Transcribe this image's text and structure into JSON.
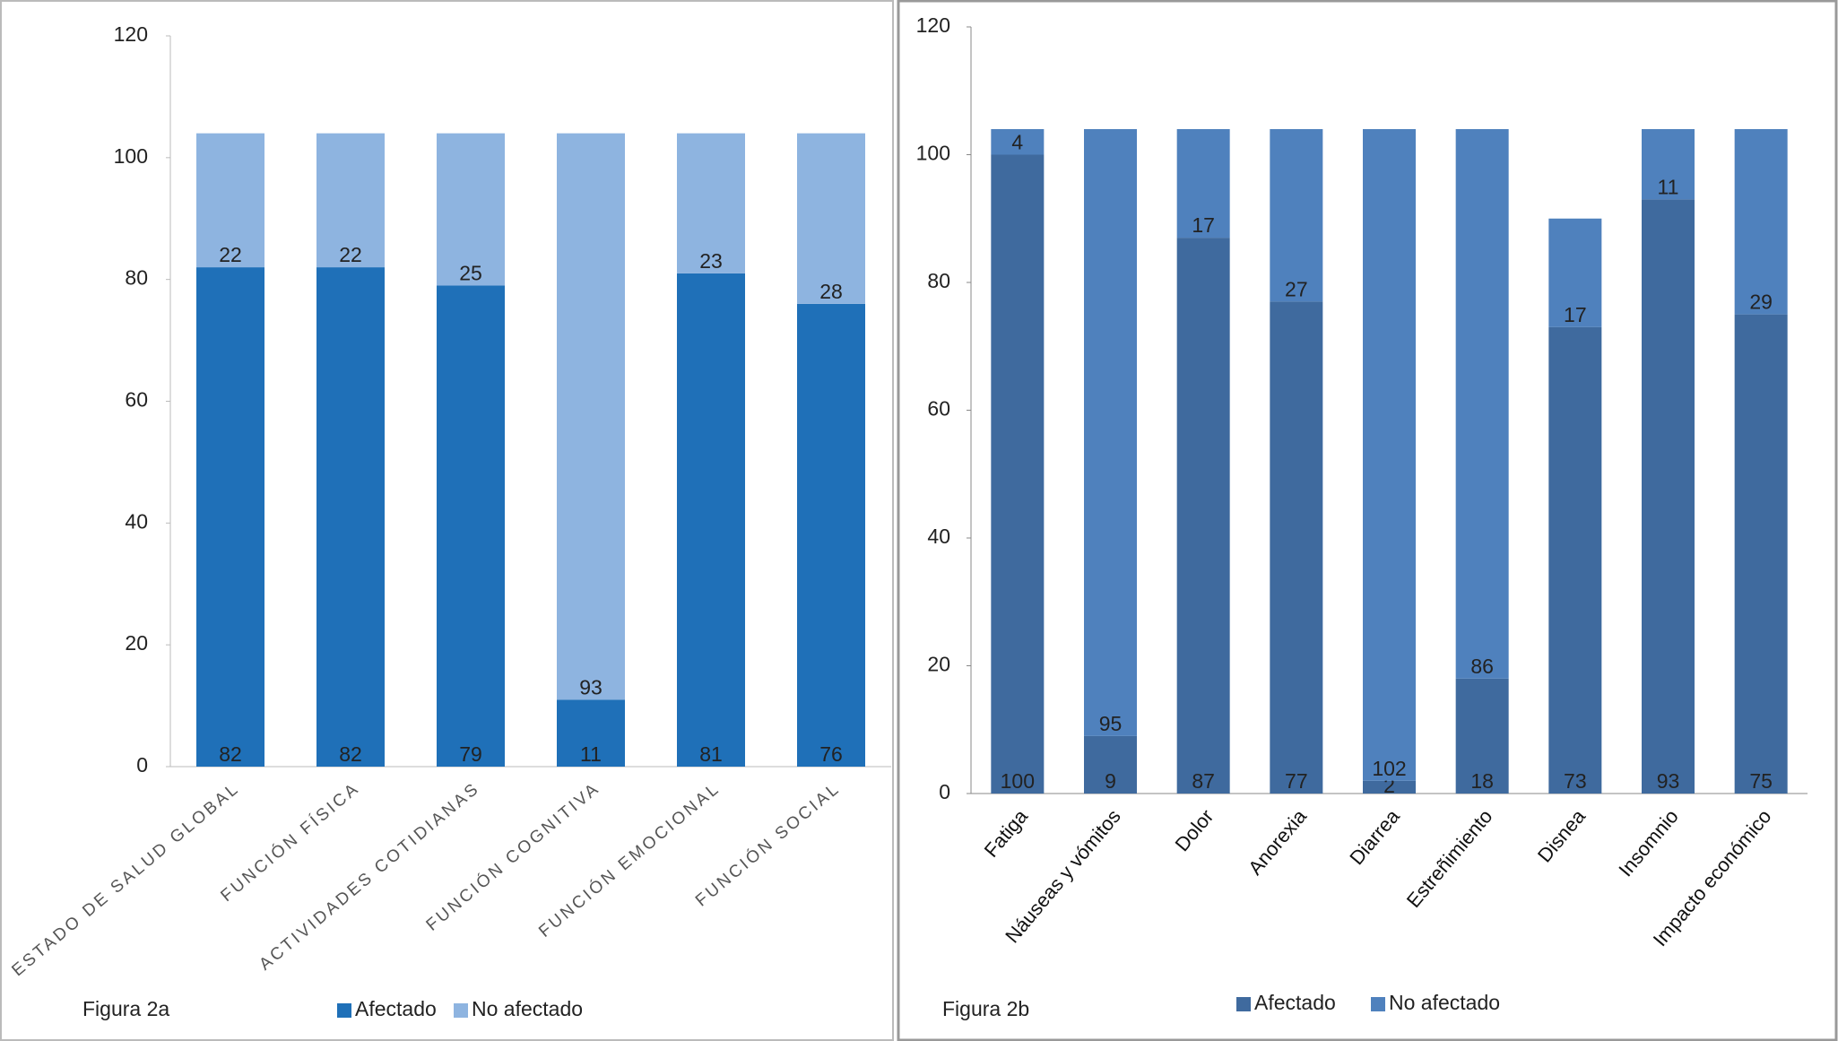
{
  "chart_data": [
    {
      "type": "bar",
      "stacked": true,
      "title": "Figura 2a",
      "categories": [
        "ESTADO DE SALUD GLOBAL",
        "FUNCIÓN FÍSICA",
        "ACTIVIDADES COTIDIANAS",
        "FUNCIÓN COGNITIVA",
        "FUNCIÓN EMOCIONAL",
        "FUNCIÓN SOCIAL"
      ],
      "series": [
        {
          "name": "Afectado",
          "color": "#1f70b8",
          "values": [
            82,
            82,
            79,
            11,
            81,
            76
          ]
        },
        {
          "name": "No afectado",
          "color": "#8eb4e0",
          "values": [
            22,
            22,
            25,
            93,
            23,
            28
          ]
        }
      ],
      "ylim": [
        0,
        120
      ],
      "yticks": [
        0,
        20,
        40,
        60,
        80,
        100,
        120
      ],
      "grid": false,
      "legend": "bottom"
    },
    {
      "type": "bar",
      "stacked": true,
      "title": "Figura 2b",
      "categories": [
        "Fatiga",
        "Náuseas y vómitos",
        "Dolor",
        "Anorexia",
        "Diarrea",
        "Estreñimiento",
        "Disnea",
        "Insomnio",
        "Impacto económico"
      ],
      "series": [
        {
          "name": "Afectado",
          "color": "#3f6a9e",
          "values": [
            100,
            9,
            87,
            77,
            2,
            18,
            73,
            93,
            75
          ]
        },
        {
          "name": "No afectado",
          "color": "#4f81bd",
          "values": [
            4,
            95,
            17,
            27,
            102,
            86,
            17,
            11,
            29
          ]
        }
      ],
      "ylim": [
        0,
        120
      ],
      "yticks": [
        0,
        20,
        40,
        60,
        80,
        100,
        120
      ],
      "grid": false,
      "legend": "bottom"
    }
  ]
}
